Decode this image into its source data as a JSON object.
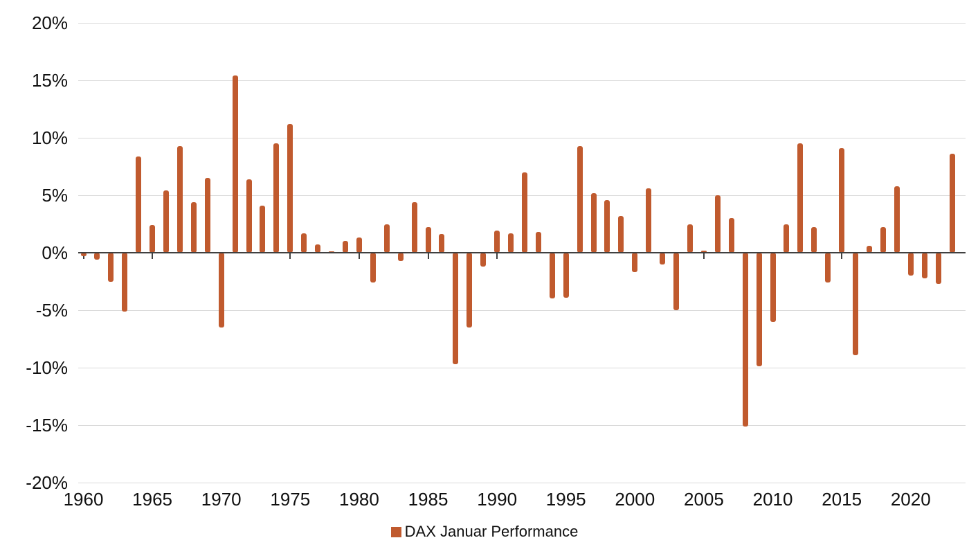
{
  "chart_data": {
    "type": "bar",
    "title": "",
    "legend": {
      "label": "DAX Januar Performance",
      "position": "bottom"
    },
    "x": [
      1960,
      1961,
      1962,
      1963,
      1964,
      1965,
      1966,
      1967,
      1968,
      1969,
      1970,
      1971,
      1972,
      1973,
      1974,
      1975,
      1976,
      1977,
      1978,
      1979,
      1980,
      1981,
      1982,
      1983,
      1984,
      1985,
      1986,
      1987,
      1988,
      1989,
      1990,
      1991,
      1992,
      1993,
      1994,
      1995,
      1996,
      1997,
      1998,
      1999,
      2000,
      2001,
      2002,
      2003,
      2004,
      2005,
      2006,
      2007,
      2008,
      2009,
      2010,
      2011,
      2012,
      2013,
      2014,
      2015,
      2016,
      2017,
      2018,
      2019,
      2020,
      2021,
      2022,
      2023
    ],
    "values": [
      -0.3,
      -0.6,
      -2.5,
      -5.1,
      8.4,
      2.4,
      5.4,
      9.3,
      4.4,
      6.5,
      -6.5,
      15.4,
      6.4,
      4.1,
      9.5,
      11.2,
      1.7,
      0.7,
      0.1,
      1.0,
      1.3,
      -2.6,
      2.5,
      -0.7,
      4.4,
      2.2,
      1.6,
      -9.7,
      -6.5,
      -1.2,
      1.9,
      1.7,
      7.0,
      1.8,
      -4.0,
      -3.9,
      9.3,
      5.2,
      4.6,
      3.2,
      -1.7,
      5.6,
      -1.0,
      -5.0,
      2.5,
      0.2,
      5.0,
      3.0,
      -15.1,
      -9.9,
      -6.0,
      2.5,
      9.5,
      2.2,
      -2.6,
      9.1,
      -8.9,
      0.6,
      2.2,
      5.8,
      -2.0,
      -2.2,
      -2.7,
      8.6
    ],
    "ylim": [
      -20,
      20
    ],
    "yticks": [
      20,
      15,
      10,
      5,
      0,
      -5,
      -10,
      -15,
      -20
    ],
    "ytick_labels": [
      "20%",
      "15%",
      "10%",
      "5%",
      "0%",
      "-5%",
      "-10%",
      "-15%",
      "-20%"
    ],
    "xtick_years": [
      1960,
      1965,
      1970,
      1975,
      1980,
      1985,
      1990,
      1995,
      2000,
      2005,
      2010,
      2015,
      2020
    ],
    "grid": true,
    "unit": "%",
    "colors": {
      "bar": "#c05a2e",
      "gridline": "#d9d9d9",
      "zero_axis": "#404040",
      "text": "#101010"
    }
  }
}
